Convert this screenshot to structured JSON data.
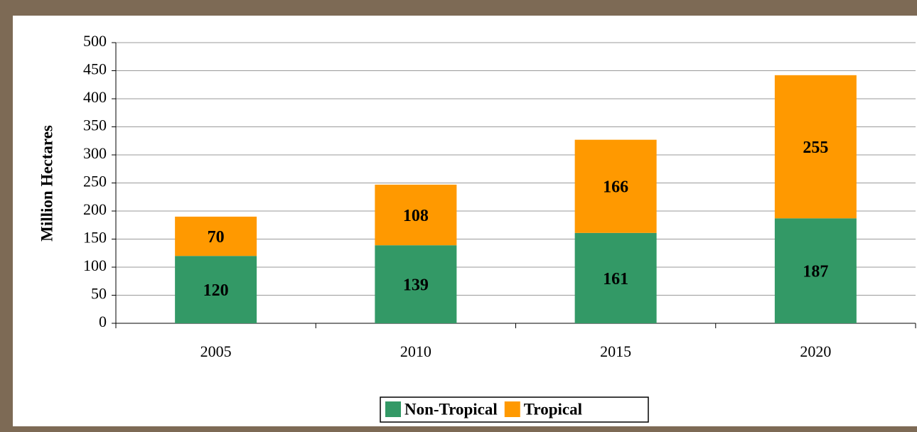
{
  "chart_data": {
    "type": "bar",
    "stacked": true,
    "y_label": "Million Hectares",
    "categories": [
      "2005",
      "2010",
      "2015",
      "2020"
    ],
    "series": [
      {
        "name": "Non-Tropical",
        "color": "#339966",
        "values": [
          120,
          139,
          161,
          187
        ]
      },
      {
        "name": "Tropical",
        "color": "#ff9900",
        "values": [
          70,
          108,
          166,
          255
        ]
      }
    ],
    "ylim": [
      0,
      500
    ],
    "yticks": [
      0,
      50,
      100,
      150,
      200,
      250,
      300,
      350,
      400,
      450,
      500
    ],
    "grid": true,
    "legend": "bottom"
  }
}
